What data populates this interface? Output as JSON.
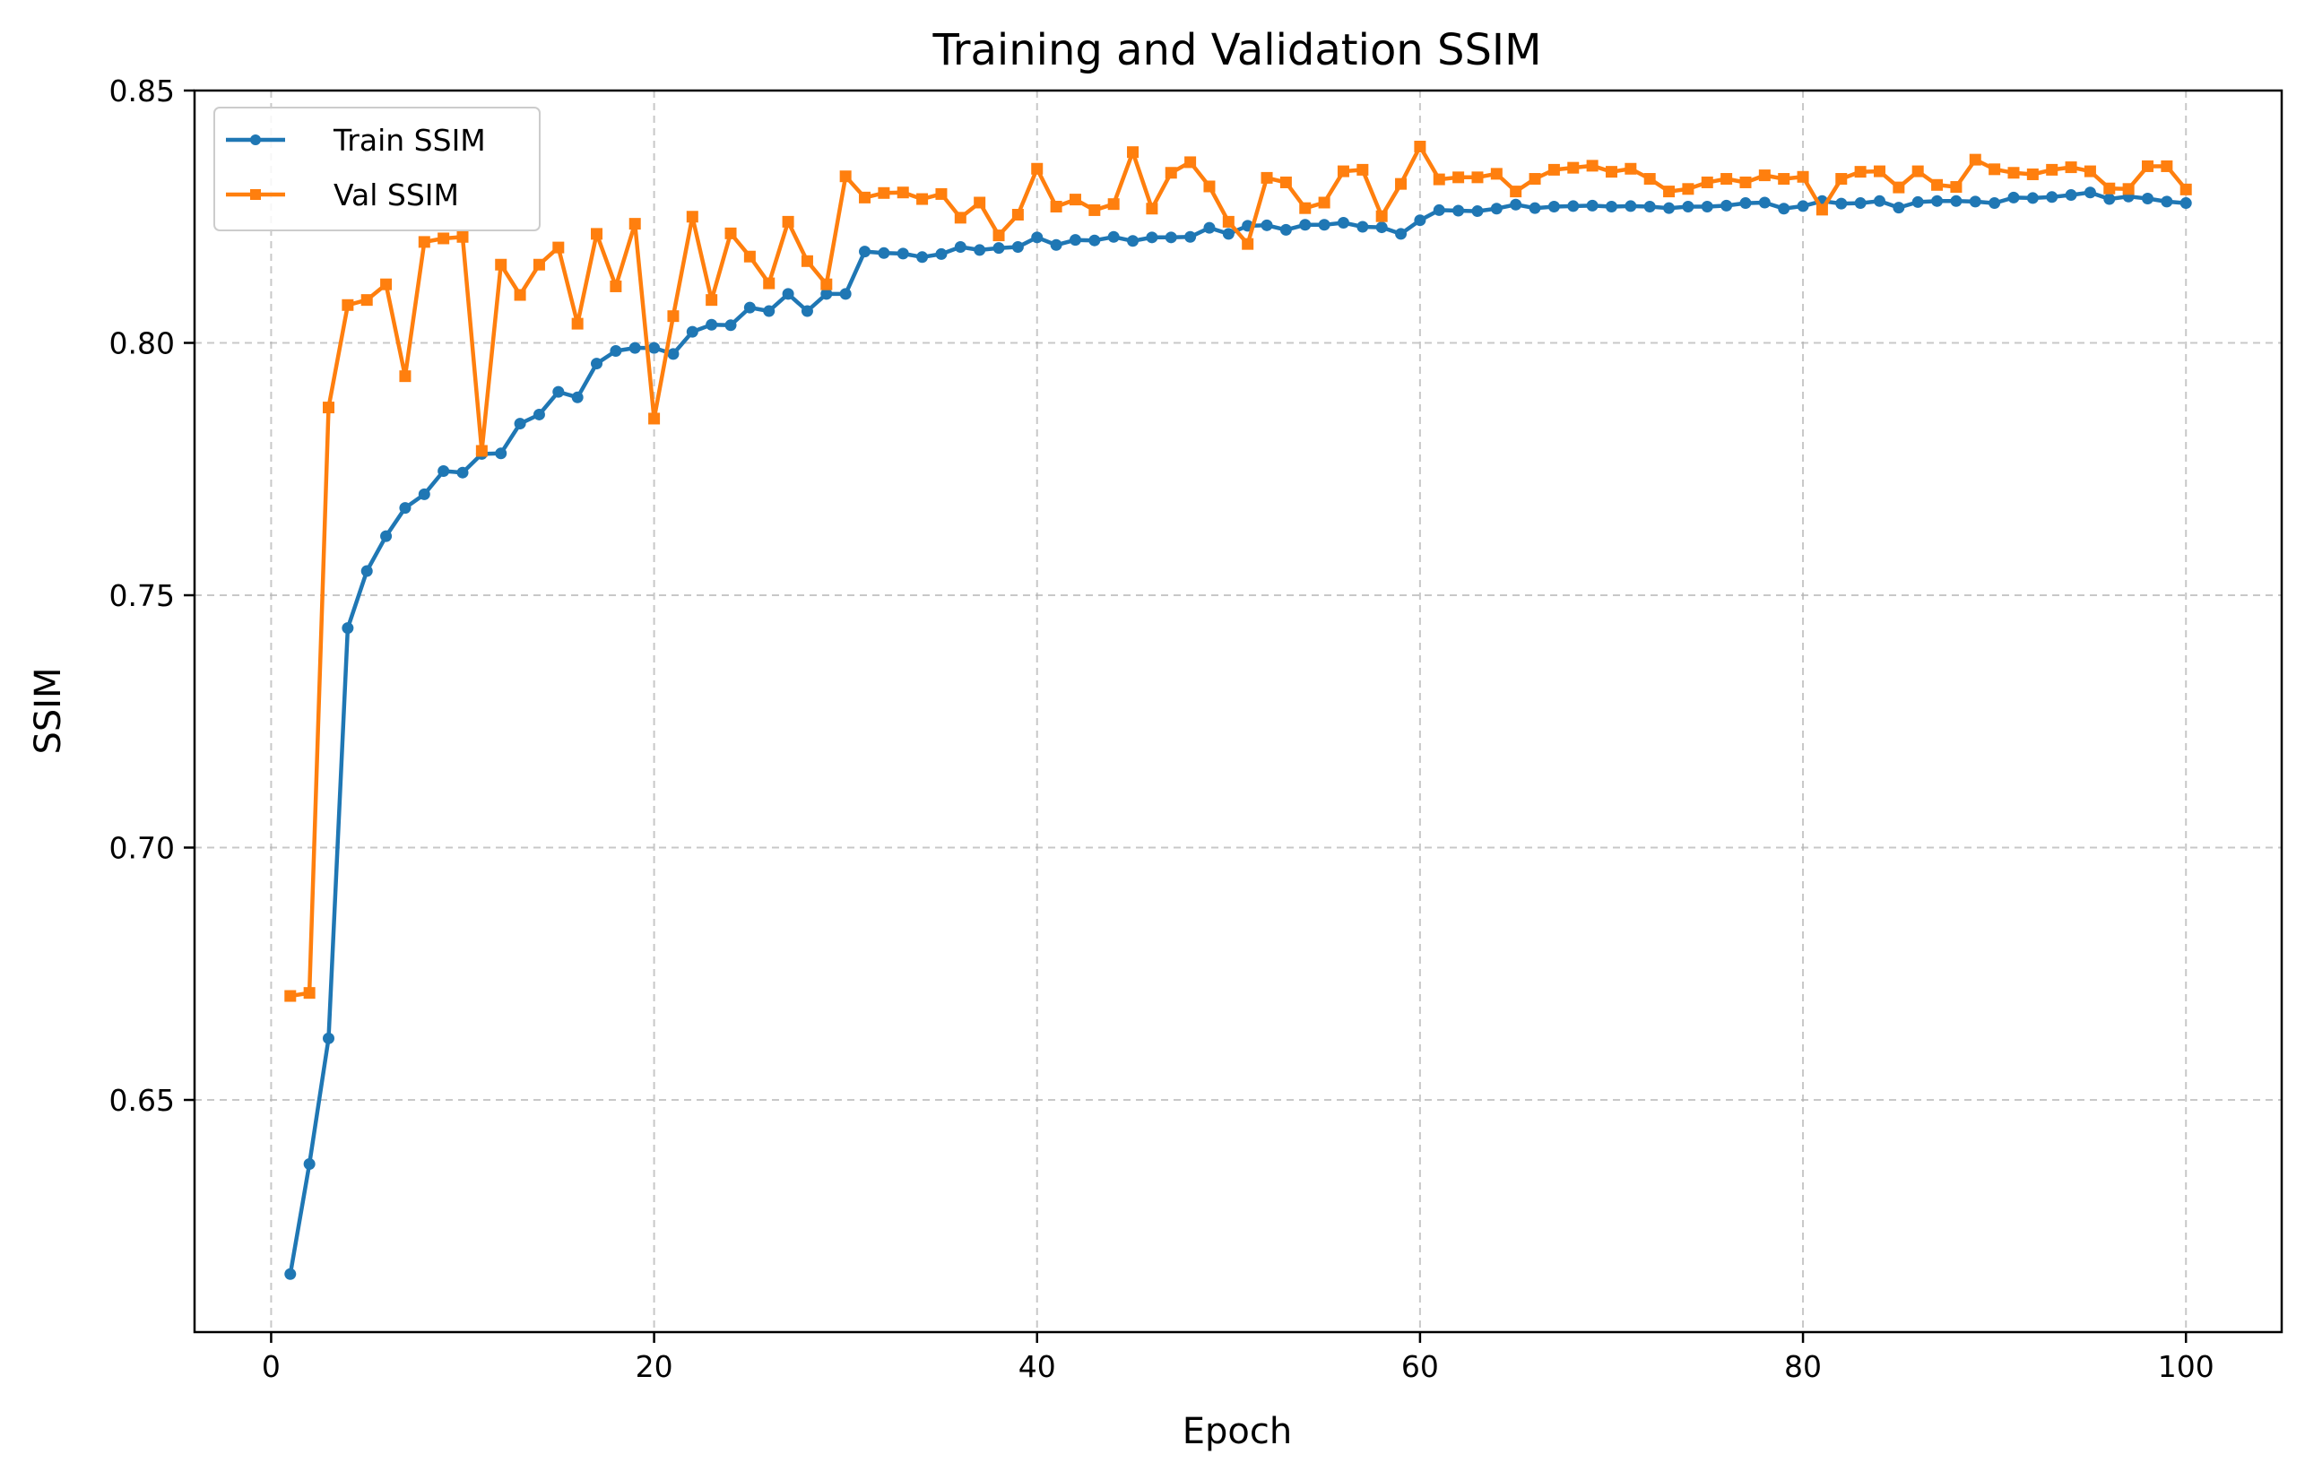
{
  "chart_data": {
    "type": "line",
    "title": "Training and Validation SSIM",
    "xlabel": "Epoch",
    "ylabel": "SSIM",
    "xlim": [
      -4,
      105
    ],
    "ylim": [
      0.604,
      0.85
    ],
    "xticks": [
      0,
      20,
      40,
      60,
      80,
      100
    ],
    "yticks": [
      0.65,
      0.7,
      0.75,
      0.8,
      0.85
    ],
    "xtick_labels": [
      "0",
      "20",
      "40",
      "60",
      "80",
      "100"
    ],
    "ytick_labels": [
      "0.65",
      "0.70",
      "0.75",
      "0.80",
      "0.85"
    ],
    "grid": true,
    "legend_position": "top-left",
    "x": [
      1,
      2,
      3,
      4,
      5,
      6,
      7,
      8,
      9,
      10,
      11,
      12,
      13,
      14,
      15,
      16,
      17,
      18,
      19,
      20,
      21,
      22,
      23,
      24,
      25,
      26,
      27,
      28,
      29,
      30,
      31,
      32,
      33,
      34,
      35,
      36,
      37,
      38,
      39,
      40,
      41,
      42,
      43,
      44,
      45,
      46,
      47,
      48,
      49,
      50,
      51,
      52,
      53,
      54,
      55,
      56,
      57,
      58,
      59,
      60,
      61,
      62,
      63,
      64,
      65,
      66,
      67,
      68,
      69,
      70,
      71,
      72,
      73,
      74,
      75,
      76,
      77,
      78,
      79,
      80,
      81,
      82,
      83,
      84,
      85,
      86,
      87,
      88,
      89,
      90,
      91,
      92,
      93,
      94,
      95,
      96,
      97,
      98,
      99,
      100
    ],
    "series": [
      {
        "name": "Train SSIM",
        "color": "#1f77b4",
        "marker": "circle",
        "values": [
          0.6155,
          0.6373,
          0.6622,
          0.7435,
          0.7548,
          0.7617,
          0.7673,
          0.77,
          0.7746,
          0.7743,
          0.778,
          0.7781,
          0.784,
          0.7858,
          0.7903,
          0.7892,
          0.7959,
          0.7984,
          0.799,
          0.799,
          0.7978,
          0.8022,
          0.8036,
          0.8035,
          0.807,
          0.8063,
          0.8097,
          0.8063,
          0.8097,
          0.8097,
          0.8181,
          0.8178,
          0.8177,
          0.817,
          0.8176,
          0.819,
          0.8184,
          0.8188,
          0.819,
          0.8209,
          0.8194,
          0.8204,
          0.8203,
          0.821,
          0.8202,
          0.8209,
          0.8209,
          0.821,
          0.8228,
          0.8216,
          0.8232,
          0.8233,
          0.8224,
          0.8234,
          0.8234,
          0.8238,
          0.823,
          0.8229,
          0.8216,
          0.8243,
          0.8263,
          0.8262,
          0.8261,
          0.8266,
          0.8274,
          0.8267,
          0.827,
          0.8271,
          0.8272,
          0.827,
          0.8271,
          0.827,
          0.8267,
          0.827,
          0.827,
          0.8272,
          0.8277,
          0.8278,
          0.8266,
          0.8271,
          0.8281,
          0.8276,
          0.8277,
          0.8281,
          0.8268,
          0.8279,
          0.8281,
          0.8281,
          0.828,
          0.8277,
          0.8288,
          0.8287,
          0.8289,
          0.8293,
          0.8298,
          0.8285,
          0.829,
          0.8286,
          0.828,
          0.8277
        ]
      },
      {
        "name": "Val SSIM",
        "color": "#ff7f0e",
        "marker": "square",
        "values": [
          0.6706,
          0.6712,
          0.7872,
          0.8075,
          0.8085,
          0.8116,
          0.7934,
          0.82,
          0.8207,
          0.821,
          0.7786,
          0.8155,
          0.8095,
          0.8155,
          0.8189,
          0.8038,
          0.8216,
          0.8112,
          0.8236,
          0.785,
          0.8053,
          0.825,
          0.8085,
          0.8217,
          0.8171,
          0.8118,
          0.824,
          0.8162,
          0.8116,
          0.833,
          0.8288,
          0.8297,
          0.8298,
          0.8285,
          0.8295,
          0.8248,
          0.8278,
          0.8213,
          0.8254,
          0.8345,
          0.827,
          0.8284,
          0.8263,
          0.8275,
          0.8378,
          0.8266,
          0.8337,
          0.8358,
          0.831,
          0.824,
          0.8196,
          0.8327,
          0.8318,
          0.8267,
          0.8278,
          0.834,
          0.8343,
          0.8251,
          0.8315,
          0.8389,
          0.8324,
          0.8328,
          0.8328,
          0.8335,
          0.83,
          0.8325,
          0.8343,
          0.8347,
          0.8351,
          0.8339,
          0.8345,
          0.8325,
          0.83,
          0.8305,
          0.8318,
          0.8325,
          0.8318,
          0.8332,
          0.8325,
          0.8329,
          0.8264,
          0.8325,
          0.8339,
          0.834,
          0.8308,
          0.834,
          0.8313,
          0.8309,
          0.8363,
          0.8344,
          0.8337,
          0.8334,
          0.8343,
          0.8348,
          0.834,
          0.8306,
          0.8305,
          0.835,
          0.835,
          0.8304
        ]
      }
    ]
  }
}
